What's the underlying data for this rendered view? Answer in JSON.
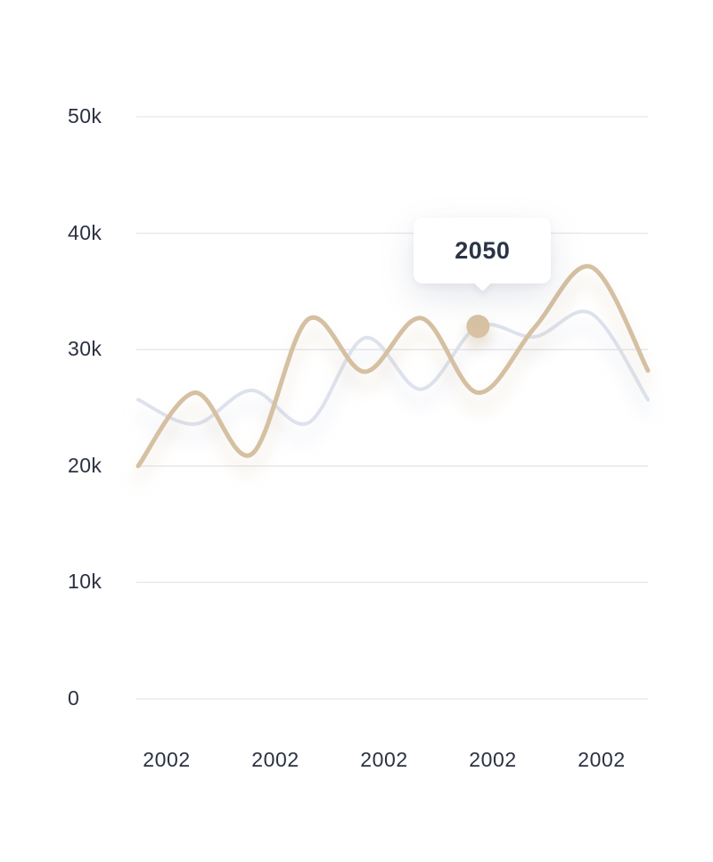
{
  "tooltip": {
    "label": "2050"
  },
  "colors": {
    "background": "#ffffff",
    "gridline": "#e6e6ea",
    "axis_text": "#2b3142",
    "tooltip_text": "#2b3447",
    "series_2002": "#d5c0a2",
    "series_2050": "#dde2ed",
    "marker": "#d8c2a3"
  },
  "chart_data": {
    "type": "line",
    "title": "",
    "xlabel": "",
    "ylabel": "",
    "ylim": [
      0,
      50000
    ],
    "grid": "horizontal",
    "legend": "none",
    "y_tick_labels": [
      "50k",
      "40k",
      "30k",
      "20k",
      "10k",
      "0"
    ],
    "y_tick_values": [
      50000,
      40000,
      30000,
      20000,
      10000,
      0
    ],
    "x_tick_labels": [
      "2002",
      "2002",
      "2002",
      "2002",
      "2002"
    ],
    "series": [
      {
        "name": "2002",
        "color": "#d5c0a2",
        "stroke_width": 5,
        "values": [
          20000,
          26300,
          21000,
          32600,
          28100,
          32700,
          26300,
          31900,
          37100,
          28200
        ]
      },
      {
        "name": "2050",
        "color": "#dde2ed",
        "stroke_width": 4,
        "values": [
          25700,
          23600,
          26500,
          23700,
          31000,
          26600,
          32000,
          31100,
          33100,
          25700
        ]
      }
    ],
    "highlight": {
      "series": "2050",
      "point_index": 6,
      "value": 32000,
      "tooltip_label": "2050",
      "marker_color": "#d8c2a3"
    }
  }
}
